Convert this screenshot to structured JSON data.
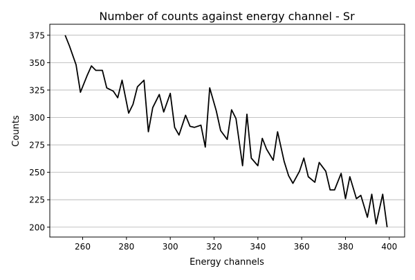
{
  "chart_data": {
    "type": "line",
    "title": "Number of counts against energy channel - Sr",
    "xlabel": "Energy channels",
    "ylabel": "Counts",
    "xlim": [
      245,
      407
    ],
    "ylim": [
      191,
      385
    ],
    "xticks": [
      260,
      280,
      300,
      320,
      340,
      360,
      380,
      400
    ],
    "yticks": [
      200,
      225,
      250,
      275,
      300,
      325,
      350,
      375
    ],
    "grid": "horizontal",
    "line_color": "#000000",
    "grid_color": "#b0b0b0",
    "series": [
      {
        "x": [
          252,
          254,
          257,
          259,
          262,
          264,
          266,
          269,
          271,
          274,
          276,
          278,
          281,
          283,
          285,
          288,
          290,
          292,
          295,
          297,
          300,
          302,
          304,
          307,
          309,
          311,
          314,
          316,
          318,
          321,
          323,
          326,
          328,
          330,
          333,
          335,
          337,
          340,
          342,
          344,
          347,
          349,
          352,
          354,
          356,
          359,
          361,
          363,
          366,
          368,
          371,
          373,
          375,
          378,
          380,
          382,
          385,
          387,
          390,
          392,
          394,
          397,
          399
        ],
        "y": [
          375,
          365,
          348,
          323,
          338,
          347,
          343,
          343,
          327,
          324,
          318,
          334,
          304,
          312,
          328,
          334,
          287,
          309,
          321,
          305,
          322,
          291,
          284,
          302,
          292,
          291,
          293,
          273,
          327,
          306,
          288,
          280,
          307,
          299,
          256,
          303,
          263,
          256,
          281,
          271,
          261,
          287,
          260,
          247,
          240,
          251,
          263,
          246,
          241,
          259,
          251,
          234,
          234,
          249,
          226,
          246,
          226,
          229,
          209,
          230,
          203,
          230,
          200
        ]
      }
    ]
  }
}
